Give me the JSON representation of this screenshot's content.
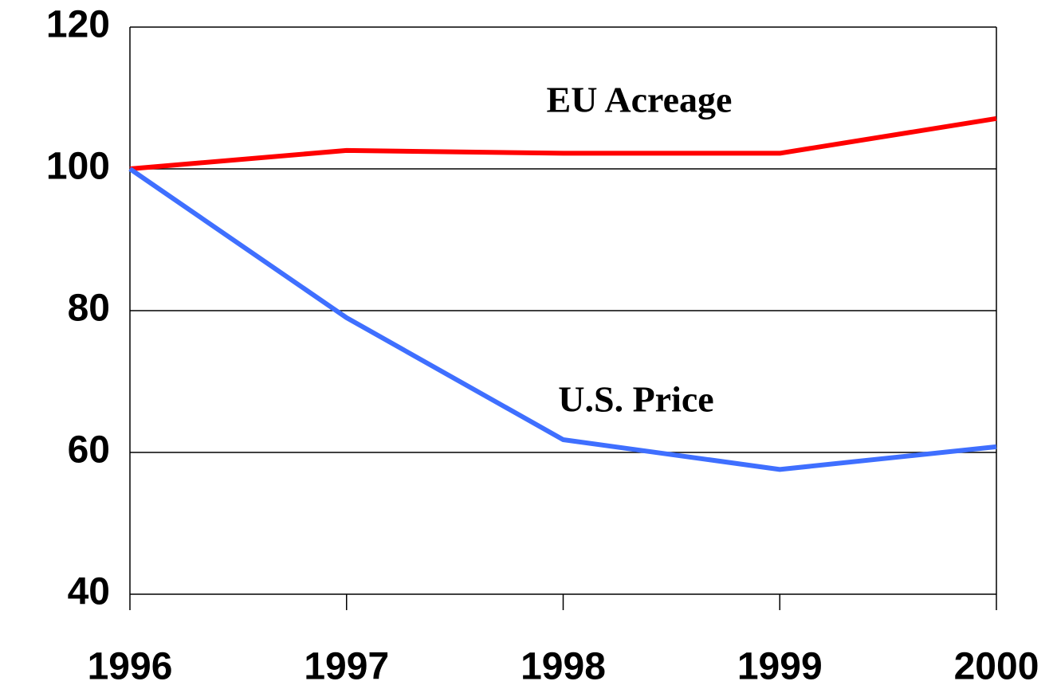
{
  "chart_data": {
    "type": "line",
    "categories": [
      "1996",
      "1997",
      "1998",
      "1999",
      "2000"
    ],
    "series": [
      {
        "name": "EU Acreage",
        "color": "#ff0000",
        "values": [
          100,
          102.6,
          102.2,
          102.2,
          107.1
        ]
      },
      {
        "name": "U.S. Price",
        "color": "#3f6fff",
        "values": [
          100,
          79,
          61.8,
          57.6,
          60.8
        ]
      }
    ],
    "ylim": [
      40,
      120
    ],
    "yticks": [
      40,
      60,
      80,
      100,
      120
    ],
    "grid": true
  }
}
